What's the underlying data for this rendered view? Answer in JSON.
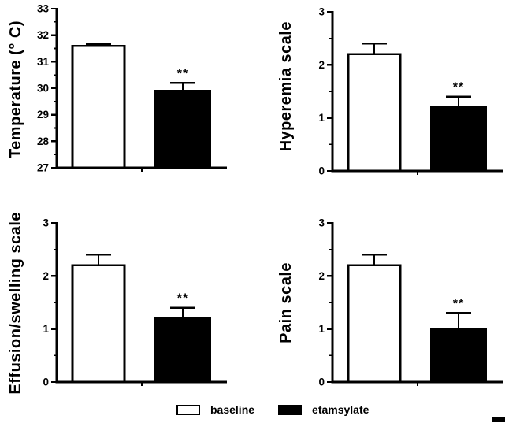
{
  "figure": {
    "background": "#ffffff"
  },
  "colors": {
    "axis": "#000000",
    "text": "#000000",
    "bar_baseline": "#ffffff",
    "bar_etamsylate": "#000000"
  },
  "legend": {
    "items": [
      {
        "label": "baseline",
        "fill": "#ffffff"
      },
      {
        "label": "etamsylate",
        "fill": "#000000"
      }
    ]
  },
  "chart_data": [
    {
      "type": "bar",
      "title": "",
      "ylabel": "Temperature (° C)",
      "ylim": [
        27,
        33
      ],
      "yticks": [
        27,
        28,
        29,
        30,
        31,
        32,
        33
      ],
      "yticks_minor": [
        27.5,
        28.5,
        29.5,
        30.5,
        31.5,
        32.5
      ],
      "grid": false,
      "categories": [
        "baseline",
        "etamsylate"
      ],
      "values": [
        31.6,
        29.9
      ],
      "errors_up": [
        0.05,
        0.3
      ],
      "significance": [
        "",
        "**"
      ]
    },
    {
      "type": "bar",
      "title": "",
      "ylabel": "Hyperemia scale",
      "ylim": [
        0,
        3
      ],
      "yticks": [
        0,
        1,
        2,
        3
      ],
      "yticks_minor": [
        0.5,
        1.5,
        2.5
      ],
      "grid": false,
      "categories": [
        "baseline",
        "etamsylate"
      ],
      "values": [
        2.2,
        1.2
      ],
      "errors_up": [
        0.2,
        0.2
      ],
      "significance": [
        "",
        "**"
      ]
    },
    {
      "type": "bar",
      "title": "",
      "ylabel": "Effusion/swelling scale",
      "ylim": [
        0,
        3
      ],
      "yticks": [
        0,
        1,
        2,
        3
      ],
      "yticks_minor": [
        0.5,
        1.5,
        2.5
      ],
      "grid": false,
      "categories": [
        "baseline",
        "etamsylate"
      ],
      "values": [
        2.2,
        1.2
      ],
      "errors_up": [
        0.2,
        0.2
      ],
      "significance": [
        "",
        "**"
      ]
    },
    {
      "type": "bar",
      "title": "",
      "ylabel": "Pain scale",
      "ylim": [
        0,
        3
      ],
      "yticks": [
        0,
        1,
        2,
        3
      ],
      "yticks_minor": [
        0.5,
        1.5,
        2.5
      ],
      "grid": false,
      "categories": [
        "baseline",
        "etamsylate"
      ],
      "values": [
        2.2,
        1.0
      ],
      "errors_up": [
        0.2,
        0.3
      ],
      "significance": [
        "",
        "**"
      ]
    }
  ]
}
